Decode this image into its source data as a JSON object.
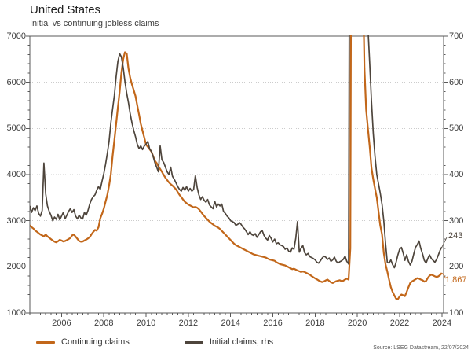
{
  "header": {
    "title": "United States",
    "subtitle": "Initial vs continuing jobless claims"
  },
  "source_note": "Source: LSEG Datastream, 22/07/2024",
  "chart_data": {
    "type": "line",
    "title": "United States",
    "subtitle": "Initial vs continuing jobless claims",
    "grid": "horizontal-dotted",
    "legend_position": "bottom-left",
    "colors": {
      "continuing": "#c2671a",
      "initial": "#4e453c",
      "frame": "#595959",
      "gridline": "#cccccc"
    },
    "x_axis": {
      "domain": [
        2005.0,
        2024.58
      ],
      "label_years": [
        2006,
        2008,
        2010,
        2012,
        2014,
        2016,
        2018,
        2020,
        2022,
        2024
      ],
      "minor_tick_interval": 0.25
    },
    "left_axis": {
      "min": 1000,
      "max": 7000,
      "major": 1000,
      "minor": 200,
      "ticks": [
        7000,
        6000,
        5000,
        4000,
        3000,
        2000,
        1000
      ]
    },
    "right_axis": {
      "min": 100,
      "max": 700,
      "major": 100,
      "minor": 20,
      "ticks": [
        700,
        600,
        500,
        400,
        300,
        200,
        100
      ]
    },
    "points_per_year": 12,
    "start_year": 2005,
    "series": [
      {
        "name": "Continuing claims",
        "axis": "left",
        "color": "#c2671a",
        "end_label": "1,867",
        "end_value": 1867,
        "values": [
          2900,
          2860,
          2830,
          2790,
          2760,
          2730,
          2700,
          2680,
          2660,
          2700,
          2660,
          2630,
          2600,
          2570,
          2545,
          2530,
          2555,
          2585,
          2570,
          2550,
          2560,
          2580,
          2600,
          2625,
          2680,
          2700,
          2655,
          2605,
          2560,
          2545,
          2550,
          2570,
          2590,
          2615,
          2645,
          2705,
          2755,
          2800,
          2785,
          2860,
          3050,
          3150,
          3260,
          3410,
          3560,
          3760,
          4010,
          4400,
          4750,
          5100,
          5450,
          5800,
          6200,
          6500,
          6650,
          6620,
          6300,
          6100,
          5950,
          5830,
          5700,
          5500,
          5300,
          5100,
          4950,
          4800,
          4650,
          4600,
          4550,
          4500,
          4400,
          4300,
          4250,
          4180,
          4120,
          4060,
          3990,
          3930,
          3880,
          3830,
          3790,
          3760,
          3720,
          3680,
          3620,
          3560,
          3510,
          3460,
          3410,
          3380,
          3350,
          3330,
          3310,
          3290,
          3300,
          3280,
          3250,
          3200,
          3150,
          3100,
          3060,
          3020,
          2980,
          2950,
          2920,
          2890,
          2870,
          2850,
          2820,
          2780,
          2740,
          2700,
          2660,
          2620,
          2580,
          2540,
          2500,
          2470,
          2450,
          2430,
          2410,
          2390,
          2370,
          2350,
          2330,
          2310,
          2290,
          2270,
          2260,
          2250,
          2240,
          2230,
          2220,
          2210,
          2200,
          2180,
          2160,
          2150,
          2140,
          2130,
          2100,
          2080,
          2060,
          2050,
          2040,
          2030,
          2010,
          1990,
          1970,
          1950,
          1960,
          1940,
          1920,
          1905,
          1890,
          1900,
          1890,
          1870,
          1850,
          1830,
          1800,
          1775,
          1750,
          1730,
          1705,
          1685,
          1670,
          1685,
          1705,
          1725,
          1695,
          1665,
          1650,
          1670,
          1690,
          1700,
          1710,
          1690,
          1700,
          1725,
          1745,
          1725,
          2400,
          17000,
          22500,
          19500,
          17000,
          14500,
          12500,
          8600,
          6300,
          5400,
          5000,
          4600,
          4150,
          3900,
          3700,
          3500,
          3200,
          2900,
          2700,
          2300,
          2050,
          1900,
          1720,
          1560,
          1460,
          1380,
          1310,
          1300,
          1360,
          1400,
          1385,
          1365,
          1455,
          1555,
          1650,
          1685,
          1705,
          1730,
          1755,
          1745,
          1725,
          1710,
          1680,
          1695,
          1760,
          1810,
          1830,
          1815,
          1795,
          1780,
          1795,
          1825,
          1867
        ]
      },
      {
        "name": "Initial claims, rhs",
        "axis": "right",
        "color": "#4e453c",
        "end_label": "243",
        "end_value": 243,
        "values": [
          332,
          318,
          328,
          322,
          332,
          316,
          310,
          322,
          425,
          358,
          332,
          320,
          312,
          300,
          308,
          303,
          314,
          302,
          310,
          318,
          304,
          312,
          320,
          326,
          318,
          324,
          310,
          304,
          312,
          306,
          304,
          318,
          312,
          322,
          336,
          346,
          352,
          356,
          366,
          374,
          368,
          386,
          402,
          422,
          446,
          472,
          512,
          542,
          572,
          612,
          645,
          662,
          655,
          632,
          602,
          576,
          556,
          532,
          512,
          496,
          482,
          466,
          456,
          462,
          454,
          462,
          466,
          472,
          456,
          450,
          440,
          426,
          416,
          406,
          462,
          432,
          426,
          416,
          406,
          400,
          416,
          396,
          390,
          382,
          374,
          368,
          364,
          372,
          366,
          374,
          364,
          370,
          364,
          368,
          398,
          372,
          356,
          346,
          352,
          344,
          340,
          346,
          334,
          330,
          326,
          342,
          330,
          336,
          332,
          336,
          320,
          316,
          310,
          306,
          300,
          298,
          296,
          290,
          292,
          296,
          292,
          286,
          282,
          276,
          270,
          276,
          270,
          268,
          272,
          264,
          270,
          276,
          278,
          268,
          262,
          258,
          268,
          262,
          254,
          260,
          250,
          252,
          248,
          246,
          244,
          238,
          241,
          234,
          232,
          241,
          238,
          262,
          298,
          232,
          240,
          246,
          231,
          226,
          229,
          222,
          220,
          218,
          215,
          210,
          208,
          213,
          219,
          223,
          221,
          216,
          219,
          212,
          215,
          221,
          212,
          208,
          211,
          213,
          216,
          223,
          212,
          206,
          1600,
          5500,
          3200,
          1800,
          1300,
          1050,
          880,
          800,
          780,
          800,
          720,
          640,
          560,
          490,
          440,
          400,
          380,
          360,
          335,
          300,
          250,
          210,
          208,
          215,
          205,
          198,
          210,
          226,
          238,
          242,
          230,
          214,
          226,
          212,
          204,
          212,
          228,
          242,
          248,
          256,
          240,
          228,
          214,
          208,
          218,
          226,
          218,
          214,
          210,
          216,
          226,
          236,
          243
        ]
      }
    ],
    "legend": [
      {
        "label": "Continuing claims",
        "color": "#c2671a"
      },
      {
        "label": "Initial claims, rhs",
        "color": "#4e453c"
      }
    ]
  }
}
